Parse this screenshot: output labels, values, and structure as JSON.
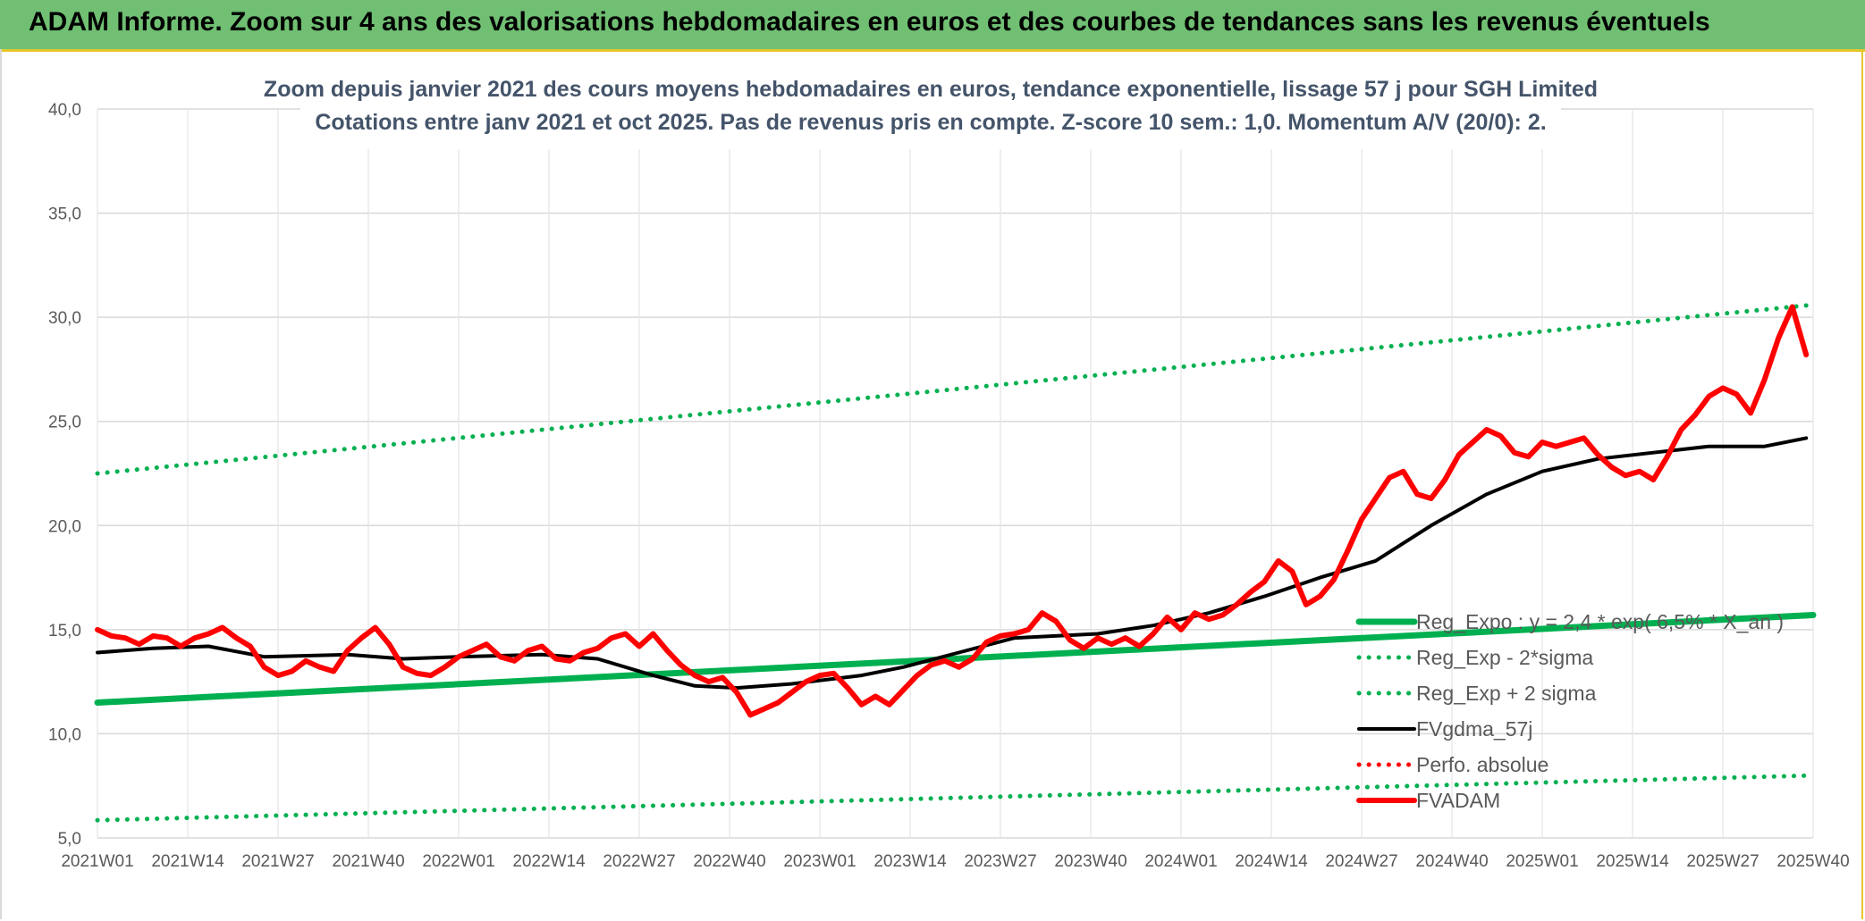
{
  "header": {
    "title": "ADAM Informe. Zoom sur 4 ans des valorisations hebdomadaires en euros et des courbes de tendances sans les revenus éventuels"
  },
  "chart_data": {
    "type": "line",
    "title_line1": "Zoom depuis janvier 2021 des cours moyens hebdomadaires en euros, tendance exponentielle, lissage 57 j pour SGH Limited",
    "title_line2": "Cotations entre janv 2021 et oct 2025. Pas de revenus pris en compte. Z-score 10 sem.: 1,0. Momentum A/V (20/0): 2.",
    "ylim": [
      5,
      40
    ],
    "y_ticks": [
      "5,0",
      "10,0",
      "15,0",
      "20,0",
      "25,0",
      "30,0",
      "35,0",
      "40,0"
    ],
    "x_ticks": [
      "2021W01",
      "2021W14",
      "2021W27",
      "2021W40",
      "2022W01",
      "2022W14",
      "2022W27",
      "2022W40",
      "2023W01",
      "2023W14",
      "2023W27",
      "2023W40",
      "2024W01",
      "2024W14",
      "2024W27",
      "2024W40",
      "2025W01",
      "2025W14",
      "2025W27",
      "2025W40"
    ],
    "x_range_weeks": [
      0,
      247
    ],
    "grid": true,
    "legend_position": "bottom-right",
    "colors": {
      "trend": "#00b050",
      "smooth": "#000000",
      "price": "#ff0000",
      "perf": "#ff0000"
    },
    "series": [
      {
        "name": "Reg_Expo : y = 2,4 * exp( 6,5% * X_an )",
        "style": "solid-thick",
        "color": "#00b050",
        "points": [
          [
            0,
            11.5
          ],
          [
            247,
            15.7
          ]
        ]
      },
      {
        "name": "Reg_Exp - 2*sigma",
        "style": "dotted",
        "color": "#00b050",
        "points": [
          [
            0,
            5.85
          ],
          [
            247,
            8.0
          ]
        ]
      },
      {
        "name": "Reg_Exp + 2 sigma",
        "style": "dotted",
        "color": "#00b050",
        "points": [
          [
            0,
            22.5
          ],
          [
            247,
            30.6
          ]
        ]
      },
      {
        "name": "FVgdma_57j",
        "style": "solid",
        "color": "#000000",
        "points": [
          [
            0,
            13.9
          ],
          [
            8,
            14.1
          ],
          [
            16,
            14.2
          ],
          [
            24,
            13.7
          ],
          [
            36,
            13.8
          ],
          [
            44,
            13.6
          ],
          [
            52,
            13.7
          ],
          [
            64,
            13.8
          ],
          [
            72,
            13.6
          ],
          [
            80,
            12.8
          ],
          [
            86,
            12.3
          ],
          [
            92,
            12.2
          ],
          [
            100,
            12.4
          ],
          [
            110,
            12.8
          ],
          [
            116,
            13.2
          ],
          [
            124,
            13.9
          ],
          [
            132,
            14.6
          ],
          [
            144,
            14.8
          ],
          [
            152,
            15.2
          ],
          [
            160,
            15.8
          ],
          [
            168,
            16.6
          ],
          [
            176,
            17.5
          ],
          [
            184,
            18.3
          ],
          [
            192,
            20.0
          ],
          [
            200,
            21.5
          ],
          [
            208,
            22.6
          ],
          [
            216,
            23.2
          ],
          [
            224,
            23.5
          ],
          [
            232,
            23.8
          ],
          [
            240,
            23.8
          ],
          [
            246,
            24.2
          ]
        ]
      },
      {
        "name": "Perfo. absolue",
        "style": "dotted",
        "color": "#ff0000",
        "points": []
      },
      {
        "name": "FVADAM",
        "style": "solid-thick",
        "color": "#ff0000",
        "points": [
          [
            0,
            15.0
          ],
          [
            2,
            14.7
          ],
          [
            4,
            14.6
          ],
          [
            6,
            14.3
          ],
          [
            8,
            14.7
          ],
          [
            10,
            14.6
          ],
          [
            12,
            14.2
          ],
          [
            14,
            14.6
          ],
          [
            16,
            14.8
          ],
          [
            18,
            15.1
          ],
          [
            20,
            14.6
          ],
          [
            22,
            14.2
          ],
          [
            24,
            13.2
          ],
          [
            26,
            12.8
          ],
          [
            28,
            13.0
          ],
          [
            30,
            13.5
          ],
          [
            32,
            13.2
          ],
          [
            34,
            13.0
          ],
          [
            36,
            14.0
          ],
          [
            38,
            14.6
          ],
          [
            40,
            15.1
          ],
          [
            42,
            14.3
          ],
          [
            44,
            13.2
          ],
          [
            46,
            12.9
          ],
          [
            48,
            12.8
          ],
          [
            50,
            13.2
          ],
          [
            52,
            13.7
          ],
          [
            54,
            14.0
          ],
          [
            56,
            14.3
          ],
          [
            58,
            13.7
          ],
          [
            60,
            13.5
          ],
          [
            62,
            14.0
          ],
          [
            64,
            14.2
          ],
          [
            66,
            13.6
          ],
          [
            68,
            13.5
          ],
          [
            70,
            13.9
          ],
          [
            72,
            14.1
          ],
          [
            74,
            14.6
          ],
          [
            76,
            14.8
          ],
          [
            78,
            14.2
          ],
          [
            80,
            14.8
          ],
          [
            82,
            14.0
          ],
          [
            84,
            13.3
          ],
          [
            86,
            12.8
          ],
          [
            88,
            12.5
          ],
          [
            90,
            12.7
          ],
          [
            92,
            12.0
          ],
          [
            94,
            10.9
          ],
          [
            96,
            11.2
          ],
          [
            98,
            11.5
          ],
          [
            100,
            12.0
          ],
          [
            102,
            12.5
          ],
          [
            104,
            12.8
          ],
          [
            106,
            12.9
          ],
          [
            108,
            12.2
          ],
          [
            110,
            11.4
          ],
          [
            112,
            11.8
          ],
          [
            114,
            11.4
          ],
          [
            116,
            12.1
          ],
          [
            118,
            12.8
          ],
          [
            120,
            13.3
          ],
          [
            122,
            13.5
          ],
          [
            124,
            13.2
          ],
          [
            126,
            13.6
          ],
          [
            128,
            14.4
          ],
          [
            130,
            14.7
          ],
          [
            132,
            14.8
          ],
          [
            134,
            15.0
          ],
          [
            136,
            15.8
          ],
          [
            138,
            15.4
          ],
          [
            140,
            14.5
          ],
          [
            142,
            14.1
          ],
          [
            144,
            14.6
          ],
          [
            146,
            14.3
          ],
          [
            148,
            14.6
          ],
          [
            150,
            14.2
          ],
          [
            152,
            14.8
          ],
          [
            154,
            15.6
          ],
          [
            156,
            15.0
          ],
          [
            158,
            15.8
          ],
          [
            160,
            15.5
          ],
          [
            162,
            15.7
          ],
          [
            164,
            16.2
          ],
          [
            166,
            16.8
          ],
          [
            168,
            17.3
          ],
          [
            170,
            18.3
          ],
          [
            172,
            17.8
          ],
          [
            174,
            16.2
          ],
          [
            176,
            16.6
          ],
          [
            178,
            17.4
          ],
          [
            180,
            18.8
          ],
          [
            182,
            20.3
          ],
          [
            184,
            21.3
          ],
          [
            186,
            22.3
          ],
          [
            188,
            22.6
          ],
          [
            190,
            21.5
          ],
          [
            192,
            21.3
          ],
          [
            194,
            22.2
          ],
          [
            196,
            23.4
          ],
          [
            198,
            24.0
          ],
          [
            200,
            24.6
          ],
          [
            202,
            24.3
          ],
          [
            204,
            23.5
          ],
          [
            206,
            23.3
          ],
          [
            208,
            24.0
          ],
          [
            210,
            23.8
          ],
          [
            212,
            24.0
          ],
          [
            214,
            24.2
          ],
          [
            216,
            23.4
          ],
          [
            218,
            22.8
          ],
          [
            220,
            22.4
          ],
          [
            222,
            22.6
          ],
          [
            224,
            22.2
          ],
          [
            226,
            23.3
          ],
          [
            228,
            24.6
          ],
          [
            230,
            25.3
          ],
          [
            232,
            26.2
          ],
          [
            234,
            26.6
          ],
          [
            236,
            26.3
          ],
          [
            238,
            25.4
          ],
          [
            240,
            27.0
          ],
          [
            242,
            29.0
          ],
          [
            244,
            30.5
          ],
          [
            246,
            28.2
          ]
        ]
      }
    ]
  }
}
